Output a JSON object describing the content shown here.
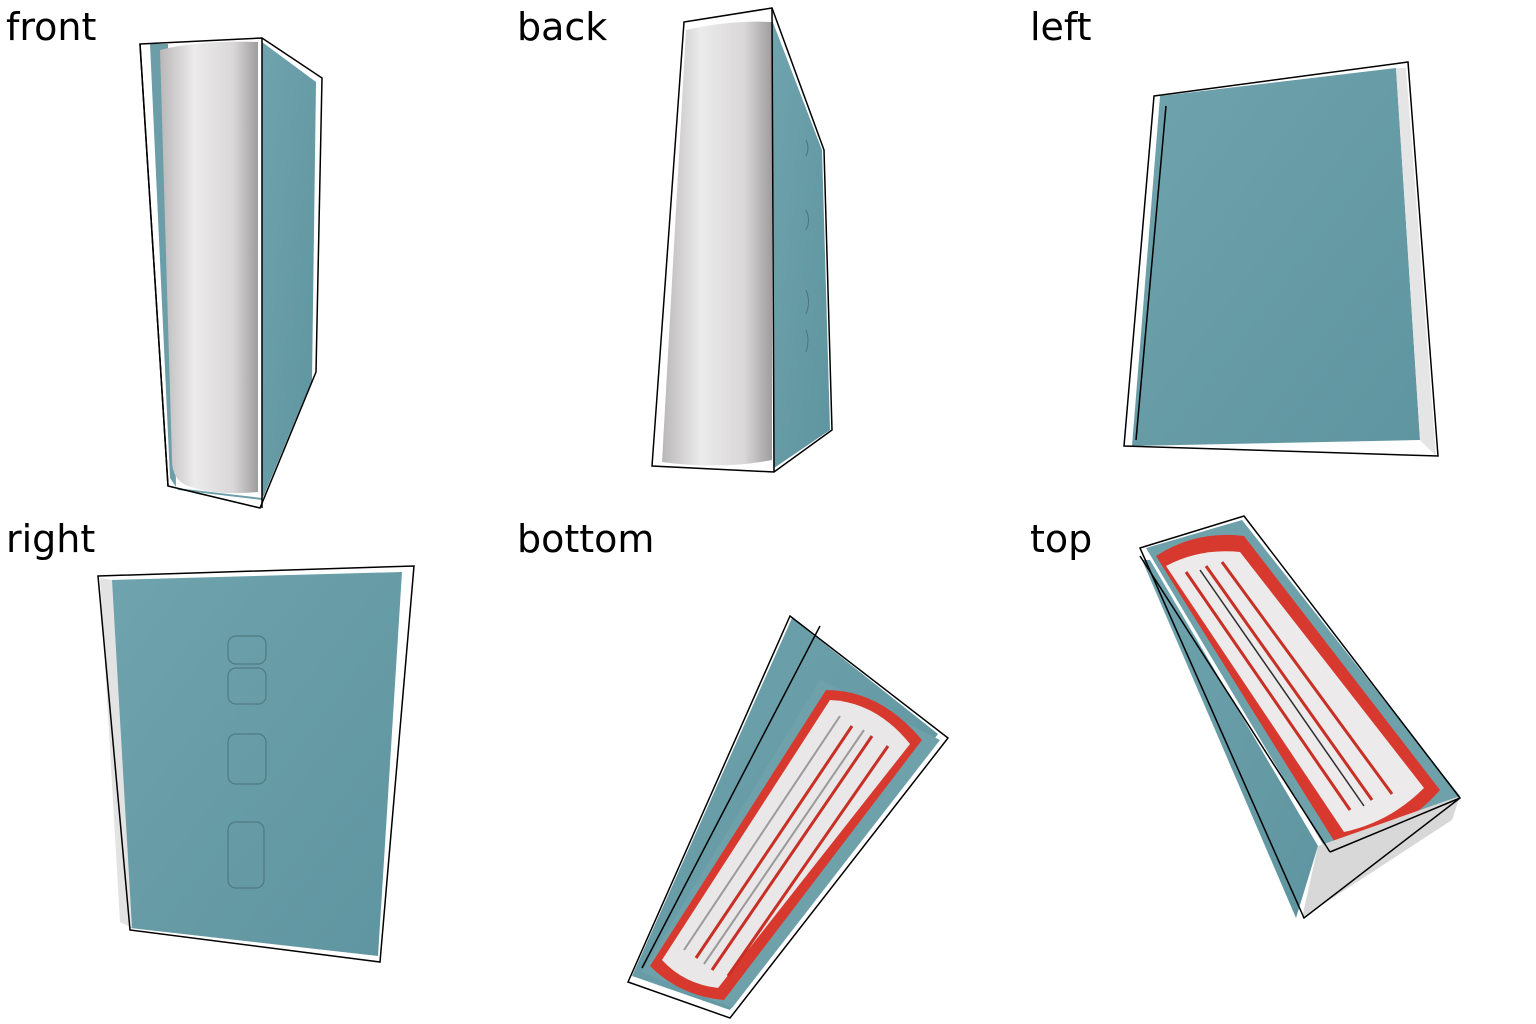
{
  "panels": [
    {
      "id": "front",
      "label": "front"
    },
    {
      "id": "back",
      "label": "back"
    },
    {
      "id": "left",
      "label": "left"
    },
    {
      "id": "right",
      "label": "right"
    },
    {
      "id": "bottom",
      "label": "bottom"
    },
    {
      "id": "top",
      "label": "top"
    }
  ],
  "colors": {
    "cover": "#6b9ea8",
    "cover_dark": "#5a8b95",
    "pages": "#d8d6d6",
    "pages_highlight": "#f2f1f1",
    "page_edge_red": "#d8392e",
    "bbox_line": "#000000",
    "background": "#ffffff"
  }
}
